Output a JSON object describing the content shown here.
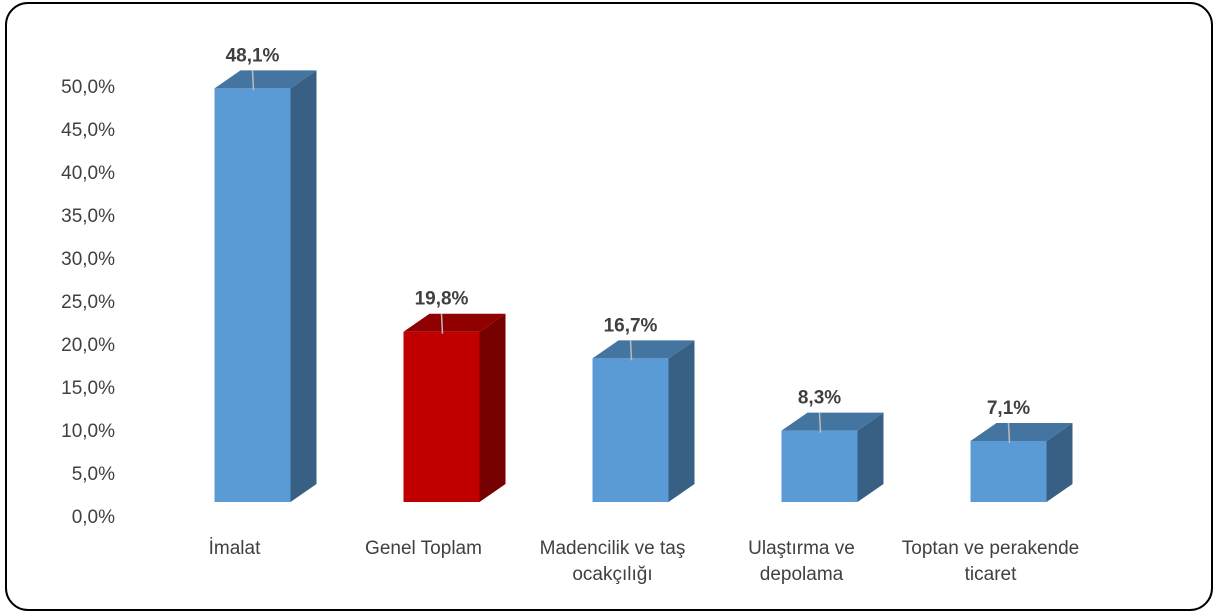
{
  "chart_data": {
    "type": "bar3d",
    "categories": [
      "İmalat",
      "Genel Toplam",
      "Madencilik ve taş ocakçılığı",
      "Ulaştırma ve depolama",
      "Toptan ve perakende ticaret"
    ],
    "values": [
      48.1,
      19.8,
      16.7,
      8.3,
      7.1
    ],
    "value_labels": [
      "48,1%",
      "19,8%",
      "16,7%",
      "8,3%",
      "7,1%"
    ],
    "colors": [
      "#5b9bd5",
      "#c00000",
      "#5b9bd5",
      "#5b9bd5",
      "#5b9bd5"
    ],
    "ylim": [
      0,
      50
    ],
    "yticks": [
      {
        "value": 0,
        "label": "0,0%"
      },
      {
        "value": 5,
        "label": "5,0%"
      },
      {
        "value": 10,
        "label": "10,0%"
      },
      {
        "value": 15,
        "label": "15,0%"
      },
      {
        "value": 20,
        "label": "20,0%"
      },
      {
        "value": 25,
        "label": "25,0%"
      },
      {
        "value": 30,
        "label": "30,0%"
      },
      {
        "value": 35,
        "label": "35,0%"
      },
      {
        "value": 40,
        "label": "40,0%"
      },
      {
        "value": 45,
        "label": "45,0%"
      },
      {
        "value": 50,
        "label": "50,0%"
      }
    ],
    "grid": false
  }
}
